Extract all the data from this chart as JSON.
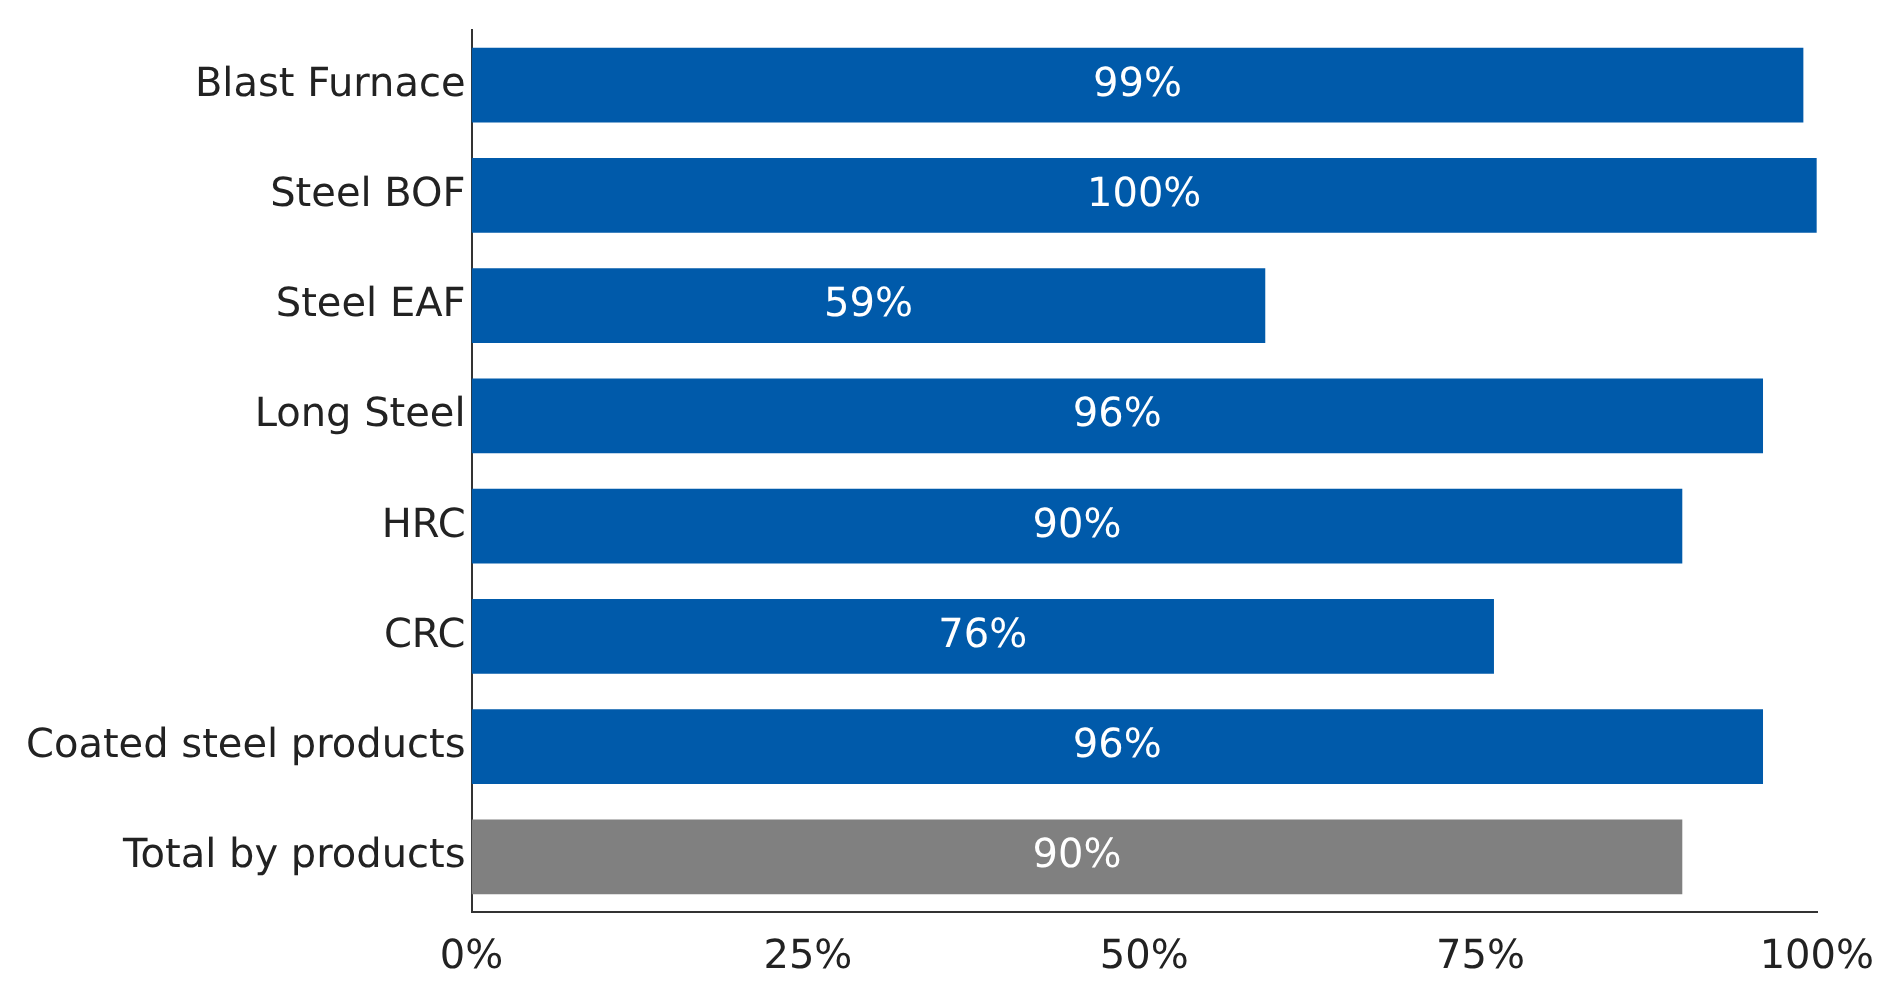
{
  "chart_data": {
    "type": "bar",
    "orientation": "horizontal",
    "categories": [
      "Blast Furnace",
      "Steel BOF",
      "Steel EAF",
      "Long Steel",
      "HRC",
      "CRC",
      "Coated steel products",
      "Total by products"
    ],
    "values": [
      99,
      100,
      59,
      96,
      90,
      76,
      96,
      90
    ],
    "value_labels": [
      "99%",
      "100%",
      "59%",
      "96%",
      "90%",
      "76%",
      "96%",
      "90%"
    ],
    "colors": [
      "#005aaa",
      "#005aaa",
      "#005aaa",
      "#005aaa",
      "#005aaa",
      "#005aaa",
      "#005aaa",
      "#808080"
    ],
    "xlim": [
      0,
      100
    ],
    "xticks": [
      {
        "value": 0,
        "label": "0%"
      },
      {
        "value": 25,
        "label": "25%"
      },
      {
        "value": 50,
        "label": "50%"
      },
      {
        "value": 75,
        "label": "75%"
      },
      {
        "value": 100,
        "label": "100%"
      }
    ],
    "grid": false,
    "legend": false
  }
}
